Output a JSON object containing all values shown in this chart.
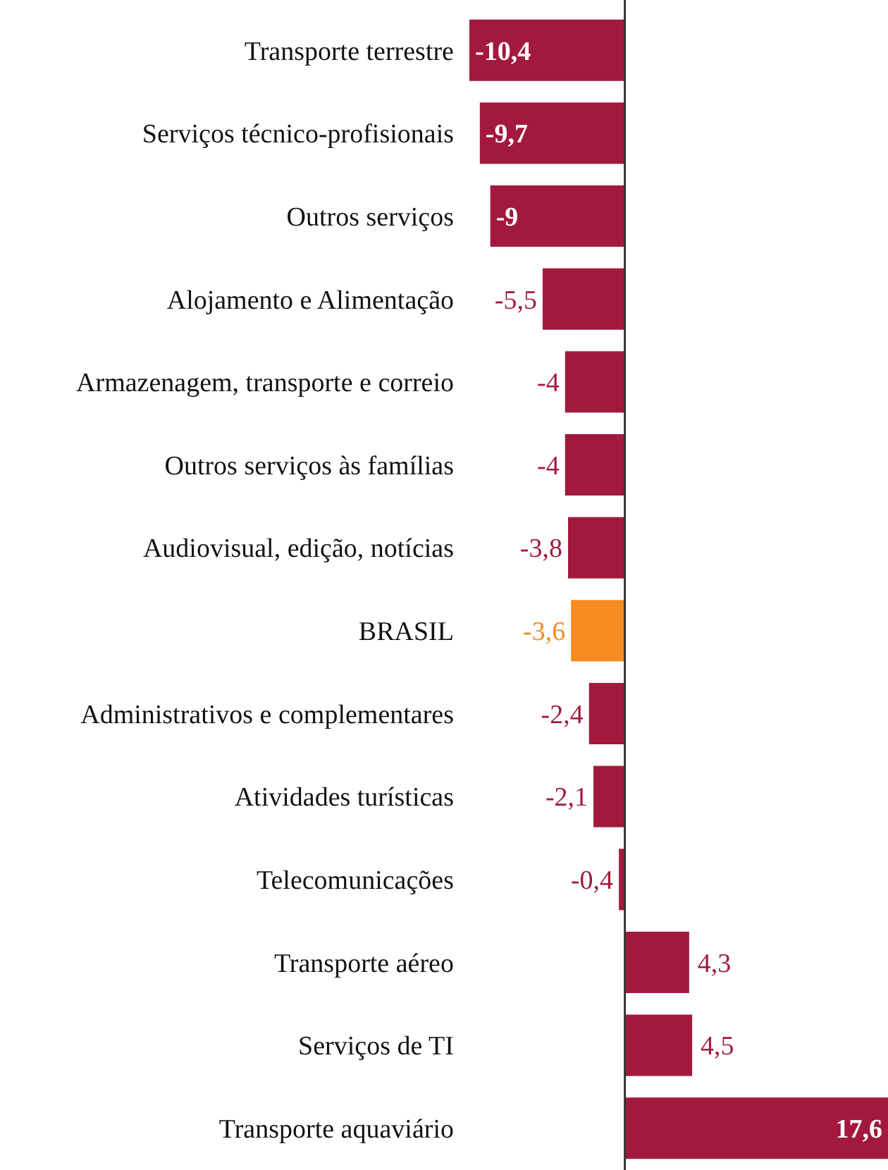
{
  "chart_data": {
    "type": "bar",
    "orientation": "horizontal",
    "categories": [
      "Transporte terrestre",
      "Serviços técnico-profisionais",
      "Outros serviços",
      "Alojamento e Alimentação",
      "Armazenagem, transporte e correio",
      "Outros serviços às famílias",
      "Audiovisual, edição, notícias",
      "BRASIL",
      "Administrativos e complementares",
      "Atividades turísticas",
      "Telecomunicações",
      "Transporte aéreo",
      "Serviços de TI",
      "Transporte aquaviário"
    ],
    "values": [
      -10.4,
      -9.7,
      -9,
      -5.5,
      -4,
      -4,
      -3.8,
      -3.6,
      -2.4,
      -2.1,
      -0.4,
      4.3,
      4.5,
      17.6
    ],
    "colors": [
      "#a3193d",
      "#a3193d",
      "#a3193d",
      "#a3193d",
      "#a3193d",
      "#a3193d",
      "#a3193d",
      "#f68b1f",
      "#a3193d",
      "#a3193d",
      "#a3193d",
      "#a3193d",
      "#a3193d",
      "#a3193d"
    ],
    "value_labels": [
      "-10,4",
      "-9,7",
      "-9",
      "-5,5",
      "-4",
      "-4",
      "-3,8",
      "-3,6",
      "-2,4",
      "-2,1",
      "-0,4",
      "4,3",
      "4,5",
      "17,6"
    ],
    "xlim": [
      -10.4,
      17.6
    ],
    "tick_labels": "y"
  }
}
